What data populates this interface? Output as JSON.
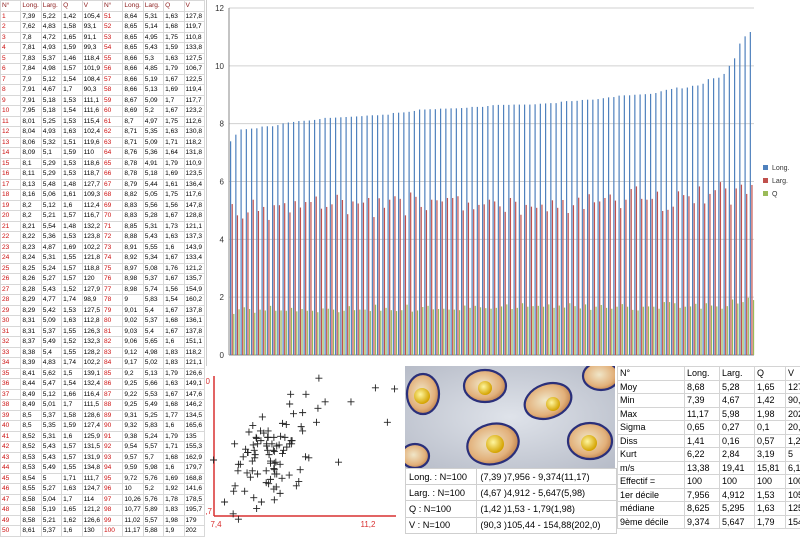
{
  "table": {
    "headers": [
      "N°",
      "Long.",
      "Larg.",
      "Q",
      "V",
      "N°",
      "Long.",
      "Larg.",
      "Q",
      "V"
    ],
    "rows": [
      [
        "1",
        "7,39",
        "5,22",
        "1,42",
        "105,4",
        "51",
        "8,64",
        "5,31",
        "1,63",
        "127,8"
      ],
      [
        "2",
        "7,62",
        "4,83",
        "1,58",
        "93,1",
        "52",
        "8,65",
        "5,14",
        "1,68",
        "119,7"
      ],
      [
        "3",
        "7,8",
        "4,72",
        "1,65",
        "91,1",
        "53",
        "8,65",
        "4,95",
        "1,75",
        "110,8"
      ],
      [
        "4",
        "7,81",
        "4,93",
        "1,59",
        "99,3",
        "54",
        "8,65",
        "5,43",
        "1,59",
        "133,8"
      ],
      [
        "5",
        "7,83",
        "5,37",
        "1,46",
        "118,4",
        "55",
        "8,66",
        "5,3",
        "1,63",
        "127,5"
      ],
      [
        "6",
        "7,84",
        "4,98",
        "1,57",
        "101,9",
        "56",
        "8,66",
        "4,85",
        "1,79",
        "106,7"
      ],
      [
        "7",
        "7,9",
        "5,12",
        "1,54",
        "108,4",
        "57",
        "8,66",
        "5,19",
        "1,67",
        "122,5"
      ],
      [
        "8",
        "7,91",
        "4,67",
        "1,7",
        "90,3",
        "58",
        "8,66",
        "5,13",
        "1,69",
        "119,4"
      ],
      [
        "9",
        "7,91",
        "5,18",
        "1,53",
        "111,1",
        "59",
        "8,67",
        "5,09",
        "1,7",
        "117,7"
      ],
      [
        "10",
        "7,95",
        "5,18",
        "1,54",
        "111,6",
        "60",
        "8,69",
        "5,2",
        "1,67",
        "123,2"
      ],
      [
        "11",
        "8,01",
        "5,25",
        "1,53",
        "115,4",
        "61",
        "8,7",
        "4,97",
        "1,75",
        "112,6"
      ],
      [
        "12",
        "8,04",
        "4,93",
        "1,63",
        "102,4",
        "62",
        "8,71",
        "5,35",
        "1,63",
        "130,8"
      ],
      [
        "13",
        "8,06",
        "5,32",
        "1,51",
        "119,6",
        "63",
        "8,71",
        "5,09",
        "1,71",
        "118,2"
      ],
      [
        "14",
        "8,09",
        "5,1",
        "1,59",
        "110",
        "64",
        "8,76",
        "5,36",
        "1,64",
        "131,8"
      ],
      [
        "15",
        "8,1",
        "5,29",
        "1,53",
        "118,6",
        "65",
        "8,78",
        "4,91",
        "1,79",
        "110,9"
      ],
      [
        "16",
        "8,11",
        "5,29",
        "1,53",
        "118,7",
        "66",
        "8,78",
        "5,18",
        "1,69",
        "123,5"
      ],
      [
        "17",
        "8,13",
        "5,48",
        "1,48",
        "127,7",
        "67",
        "8,79",
        "5,44",
        "1,61",
        "136,4"
      ],
      [
        "18",
        "8,16",
        "5,06",
        "1,61",
        "109,3",
        "68",
        "8,82",
        "5,05",
        "1,75",
        "117,6"
      ],
      [
        "19",
        "8,2",
        "5,12",
        "1,6",
        "112,4",
        "69",
        "8,83",
        "5,56",
        "1,56",
        "147,8"
      ],
      [
        "20",
        "8,2",
        "5,21",
        "1,57",
        "116,7",
        "70",
        "8,83",
        "5,28",
        "1,67",
        "128,8"
      ],
      [
        "21",
        "8,21",
        "5,54",
        "1,48",
        "132,2",
        "71",
        "8,85",
        "5,31",
        "1,73",
        "121,1"
      ],
      [
        "22",
        "8,22",
        "5,36",
        "1,53",
        "123,8",
        "72",
        "8,88",
        "5,43",
        "1,63",
        "137,3"
      ],
      [
        "23",
        "8,23",
        "4,87",
        "1,69",
        "102,2",
        "73",
        "8,91",
        "5,55",
        "1,6",
        "143,9"
      ],
      [
        "24",
        "8,24",
        "5,31",
        "1,55",
        "121,8",
        "74",
        "8,92",
        "5,34",
        "1,67",
        "133,4"
      ],
      [
        "25",
        "8,25",
        "5,24",
        "1,57",
        "118,8",
        "75",
        "8,97",
        "5,08",
        "1,76",
        "121,2"
      ],
      [
        "26",
        "8,26",
        "5,27",
        "1,57",
        "120",
        "76",
        "8,98",
        "5,37",
        "1,67",
        "135,7"
      ],
      [
        "27",
        "8,28",
        "5,43",
        "1,52",
        "127,9",
        "77",
        "8,98",
        "5,74",
        "1,56",
        "154,9"
      ],
      [
        "28",
        "8,29",
        "4,77",
        "1,74",
        "98,9",
        "78",
        "9",
        "5,83",
        "1,54",
        "160,2"
      ],
      [
        "29",
        "8,29",
        "5,42",
        "1,53",
        "127,5",
        "79",
        "9,01",
        "5,4",
        "1,67",
        "137,8"
      ],
      [
        "30",
        "8,31",
        "5,09",
        "1,63",
        "112,8",
        "80",
        "9,02",
        "5,37",
        "1,68",
        "136,1"
      ],
      [
        "31",
        "8,31",
        "5,37",
        "1,55",
        "126,3",
        "81",
        "9,03",
        "5,4",
        "1,67",
        "137,8"
      ],
      [
        "32",
        "8,37",
        "5,49",
        "1,52",
        "132,3",
        "82",
        "9,06",
        "5,65",
        "1,6",
        "151,1"
      ],
      [
        "33",
        "8,38",
        "5,4",
        "1,55",
        "128,2",
        "83",
        "9,12",
        "4,98",
        "1,83",
        "118,2"
      ],
      [
        "34",
        "8,39",
        "4,83",
        "1,74",
        "102,2",
        "84",
        "9,17",
        "5,02",
        "1,83",
        "121,1"
      ],
      [
        "35",
        "8,41",
        "5,62",
        "1,5",
        "139,1",
        "85",
        "9,2",
        "5,13",
        "1,79",
        "126,6"
      ],
      [
        "36",
        "8,44",
        "5,47",
        "1,54",
        "132,4",
        "86",
        "9,25",
        "5,66",
        "1,63",
        "149,1"
      ],
      [
        "37",
        "8,49",
        "5,12",
        "1,66",
        "116,4",
        "87",
        "9,22",
        "5,53",
        "1,67",
        "147,6"
      ],
      [
        "38",
        "8,49",
        "5,01",
        "1,7",
        "111,5",
        "88",
        "9,25",
        "5,49",
        "1,68",
        "146,2"
      ],
      [
        "39",
        "8,5",
        "5,37",
        "1,58",
        "128,6",
        "89",
        "9,31",
        "5,25",
        "1,77",
        "134,5"
      ],
      [
        "40",
        "8,5",
        "5,35",
        "1,59",
        "127,4",
        "90",
        "9,32",
        "5,83",
        "1,6",
        "165,6"
      ],
      [
        "41",
        "8,52",
        "5,31",
        "1,6",
        "125,9",
        "91",
        "9,38",
        "5,24",
        "1,79",
        "135"
      ],
      [
        "42",
        "8,52",
        "5,43",
        "1,57",
        "131,5",
        "92",
        "9,54",
        "5,57",
        "1,71",
        "155,3"
      ],
      [
        "43",
        "8,53",
        "5,43",
        "1,57",
        "131,9",
        "93",
        "9,57",
        "5,7",
        "1,68",
        "162,9"
      ],
      [
        "44",
        "8,53",
        "5,49",
        "1,55",
        "134,8",
        "94",
        "9,59",
        "5,98",
        "1,6",
        "179,7"
      ],
      [
        "45",
        "8,54",
        "5",
        "1,71",
        "111,7",
        "95",
        "9,72",
        "5,76",
        "1,69",
        "168,8"
      ],
      [
        "46",
        "8,55",
        "5,27",
        "1,63",
        "124,7",
        "96",
        "10",
        "5,2",
        "1,92",
        "141,6"
      ],
      [
        "47",
        "8,58",
        "5,04",
        "1,7",
        "114",
        "97",
        "10,26",
        "5,76",
        "1,78",
        "178,5"
      ],
      [
        "48",
        "8,58",
        "5,19",
        "1,65",
        "121,2",
        "98",
        "10,77",
        "5,89",
        "1,83",
        "195,7"
      ],
      [
        "49",
        "8,58",
        "5,21",
        "1,62",
        "126,6",
        "99",
        "11,02",
        "5,57",
        "1,98",
        "179"
      ],
      [
        "50",
        "8,61",
        "5,37",
        "1,6",
        "130",
        "100",
        "11,17",
        "5,88",
        "1,9",
        "202"
      ]
    ]
  },
  "chart_data": [
    {
      "type": "bar",
      "title": "",
      "ylim": [
        0,
        12
      ],
      "yticks": [
        "0",
        "2",
        "4",
        "6",
        "8",
        "10",
        "12"
      ],
      "grid": true,
      "legend_position": "right",
      "series": [
        {
          "name": "Long.",
          "color": "#4f81bd",
          "values": [
            7.39,
            7.62,
            7.8,
            7.81,
            7.83,
            7.84,
            7.9,
            7.91,
            7.91,
            7.95,
            8.01,
            8.04,
            8.06,
            8.09,
            8.1,
            8.11,
            8.13,
            8.16,
            8.2,
            8.2,
            8.21,
            8.22,
            8.23,
            8.24,
            8.25,
            8.26,
            8.28,
            8.29,
            8.29,
            8.31,
            8.31,
            8.37,
            8.38,
            8.39,
            8.41,
            8.44,
            8.49,
            8.49,
            8.5,
            8.5,
            8.52,
            8.52,
            8.53,
            8.53,
            8.54,
            8.55,
            8.58,
            8.58,
            8.58,
            8.61,
            8.64,
            8.65,
            8.65,
            8.65,
            8.66,
            8.66,
            8.66,
            8.66,
            8.67,
            8.69,
            8.7,
            8.71,
            8.71,
            8.76,
            8.78,
            8.78,
            8.79,
            8.82,
            8.83,
            8.83,
            8.85,
            8.88,
            8.91,
            8.92,
            8.97,
            8.98,
            8.98,
            9,
            9.01,
            9.02,
            9.03,
            9.06,
            9.12,
            9.17,
            9.2,
            9.25,
            9.22,
            9.25,
            9.31,
            9.32,
            9.38,
            9.54,
            9.57,
            9.59,
            9.72,
            10,
            10.26,
            10.77,
            11.02,
            11.17
          ]
        },
        {
          "name": "Larg.",
          "color": "#c0504d",
          "values": [
            5.22,
            4.83,
            4.72,
            4.93,
            5.37,
            4.98,
            5.12,
            4.67,
            5.18,
            5.18,
            5.25,
            4.93,
            5.32,
            5.1,
            5.29,
            5.29,
            5.48,
            5.06,
            5.12,
            5.21,
            5.54,
            5.36,
            4.87,
            5.31,
            5.24,
            5.27,
            5.43,
            4.77,
            5.42,
            5.09,
            5.37,
            5.49,
            5.4,
            4.83,
            5.62,
            5.47,
            5.12,
            5.01,
            5.37,
            5.35,
            5.31,
            5.43,
            5.43,
            5.49,
            5,
            5.27,
            5.04,
            5.19,
            5.21,
            5.37,
            5.31,
            5.14,
            4.95,
            5.43,
            5.3,
            4.85,
            5.19,
            5.13,
            5.09,
            5.2,
            4.97,
            5.35,
            5.09,
            5.36,
            4.91,
            5.18,
            5.44,
            5.05,
            5.56,
            5.28,
            5.31,
            5.43,
            5.55,
            5.34,
            5.08,
            5.37,
            5.74,
            5.83,
            5.4,
            5.37,
            5.4,
            5.65,
            4.98,
            5.02,
            5.13,
            5.66,
            5.53,
            5.49,
            5.25,
            5.83,
            5.24,
            5.57,
            5.7,
            5.98,
            5.76,
            5.2,
            5.76,
            5.89,
            5.57,
            5.88
          ]
        },
        {
          "name": "Q",
          "color": "#9bbb59",
          "values": [
            1.42,
            1.58,
            1.65,
            1.59,
            1.46,
            1.57,
            1.54,
            1.7,
            1.53,
            1.54,
            1.53,
            1.63,
            1.51,
            1.59,
            1.53,
            1.53,
            1.48,
            1.61,
            1.6,
            1.57,
            1.48,
            1.53,
            1.69,
            1.55,
            1.57,
            1.57,
            1.52,
            1.74,
            1.53,
            1.63,
            1.55,
            1.52,
            1.55,
            1.74,
            1.5,
            1.54,
            1.66,
            1.7,
            1.58,
            1.59,
            1.6,
            1.57,
            1.57,
            1.55,
            1.71,
            1.63,
            1.7,
            1.65,
            1.62,
            1.6,
            1.63,
            1.68,
            1.75,
            1.59,
            1.63,
            1.79,
            1.67,
            1.69,
            1.7,
            1.67,
            1.75,
            1.63,
            1.71,
            1.64,
            1.79,
            1.69,
            1.61,
            1.75,
            1.56,
            1.67,
            1.73,
            1.63,
            1.6,
            1.67,
            1.76,
            1.67,
            1.56,
            1.54,
            1.67,
            1.68,
            1.67,
            1.6,
            1.83,
            1.83,
            1.79,
            1.63,
            1.67,
            1.68,
            1.77,
            1.6,
            1.79,
            1.71,
            1.68,
            1.6,
            1.69,
            1.92,
            1.78,
            1.83,
            1.98,
            1.9
          ]
        }
      ]
    },
    {
      "type": "scatter",
      "title": "",
      "xlim": [
        7.4,
        11.2
      ],
      "ylim": [
        4.7,
        6.0
      ],
      "xticks": [
        "7,4",
        "11,2"
      ],
      "yticks": [
        "4,7",
        "6,0"
      ],
      "marker": "+",
      "points_note_x_is": "Long.",
      "x": [
        7.39,
        7.62,
        7.8,
        7.81,
        7.83,
        7.84,
        7.9,
        7.91,
        7.91,
        7.95,
        8.01,
        8.04,
        8.06,
        8.09,
        8.1,
        8.11,
        8.13,
        8.16,
        8.2,
        8.2,
        8.21,
        8.22,
        8.23,
        8.24,
        8.25,
        8.26,
        8.28,
        8.29,
        8.29,
        8.31,
        8.31,
        8.37,
        8.38,
        8.39,
        8.41,
        8.44,
        8.49,
        8.49,
        8.5,
        8.5,
        8.52,
        8.52,
        8.53,
        8.53,
        8.54,
        8.55,
        8.58,
        8.58,
        8.58,
        8.61,
        8.64,
        8.65,
        8.65,
        8.65,
        8.66,
        8.66,
        8.66,
        8.66,
        8.67,
        8.69,
        8.7,
        8.71,
        8.71,
        8.76,
        8.78,
        8.78,
        8.79,
        8.82,
        8.83,
        8.83,
        8.85,
        8.88,
        8.91,
        8.92,
        8.97,
        8.98,
        8.98,
        9,
        9.01,
        9.02,
        9.03,
        9.06,
        9.12,
        9.17,
        9.2,
        9.25,
        9.22,
        9.25,
        9.31,
        9.32,
        9.38,
        9.54,
        9.57,
        9.59,
        9.72,
        10,
        10.26,
        10.77,
        11.02,
        11.17
      ],
      "y": [
        5.22,
        4.83,
        4.72,
        4.93,
        5.37,
        4.98,
        5.12,
        4.67,
        5.18,
        5.18,
        5.25,
        4.93,
        5.32,
        5.1,
        5.29,
        5.29,
        5.48,
        5.06,
        5.12,
        5.21,
        5.54,
        5.36,
        4.87,
        5.31,
        5.24,
        5.27,
        5.43,
        4.77,
        5.42,
        5.09,
        5.37,
        5.49,
        5.4,
        4.83,
        5.62,
        5.47,
        5.12,
        5.01,
        5.37,
        5.35,
        5.31,
        5.43,
        5.43,
        5.49,
        5,
        5.27,
        5.04,
        5.19,
        5.21,
        5.37,
        5.31,
        5.14,
        4.95,
        5.43,
        5.3,
        4.85,
        5.19,
        5.13,
        5.09,
        5.2,
        4.97,
        5.35,
        5.09,
        5.36,
        4.91,
        5.18,
        5.44,
        5.05,
        5.56,
        5.28,
        5.31,
        5.43,
        5.55,
        5.34,
        5.08,
        5.37,
        5.74,
        5.83,
        5.4,
        5.37,
        5.4,
        5.65,
        4.98,
        5.02,
        5.13,
        5.66,
        5.53,
        5.49,
        5.25,
        5.83,
        5.24,
        5.57,
        5.7,
        5.98,
        5.76,
        5.2,
        5.76,
        5.89,
        5.57,
        5.88
      ]
    }
  ],
  "counts": [
    [
      "Long. : N=100",
      "(7,39 )7,956 - 9,374(11,17)"
    ],
    [
      "Larg. : N=100",
      "(4,67 )4,912 - 5,647(5,98)"
    ],
    [
      "Q : N=100",
      "(1,42 )1,53 - 1,79(1,98)"
    ],
    [
      "V : N=100",
      "(90,3 )105,44 - 154,88(202,0)"
    ]
  ],
  "stats": {
    "headers": [
      "N°",
      "Long.",
      "Larg.",
      "Q",
      "V"
    ],
    "rows": [
      [
        "Moy",
        "8,68",
        "5,28",
        "1,65",
        "127,6"
      ],
      [
        "Min",
        "7,39",
        "4,67",
        "1,42",
        "90,3"
      ],
      [
        "Max",
        "11,17",
        "5,98",
        "1,98",
        "202"
      ],
      [
        "Sigma",
        "0,65",
        "0,27",
        "0,1",
        "20,8"
      ],
      [
        "Diss",
        "1,41",
        "0,16",
        "0,57",
        "1,2"
      ],
      [
        "Kurt",
        "6,22",
        "2,84",
        "3,19",
        "5"
      ],
      [
        "m/s",
        "13,38",
        "19,41",
        "15,81",
        "6,15"
      ],
      [
        "Effectif =",
        "100",
        "100",
        "100",
        "100"
      ],
      [
        "1er décile",
        "7,956",
        "4,912",
        "1,53",
        "105,44"
      ],
      [
        "médiane",
        "8,625",
        "5,295",
        "1,63",
        "125,3"
      ],
      [
        "9ème décile",
        "9,374",
        "5,647",
        "1,79",
        "154,88"
      ]
    ]
  }
}
